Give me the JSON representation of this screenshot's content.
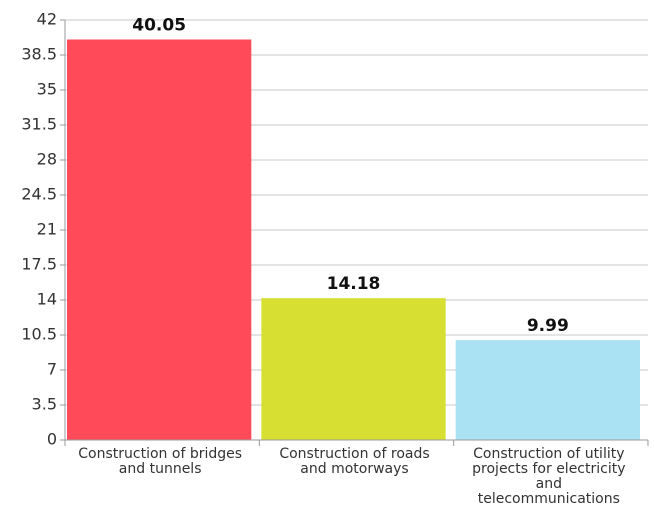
{
  "chart_data": {
    "type": "bar",
    "categories": [
      "Construction of bridges and tunnels",
      "Construction of roads and motorways",
      "Construction of utility projects for electricity and telecommunications"
    ],
    "values": [
      40.05,
      14.18,
      9.99
    ],
    "colors": [
      "#ff4b59",
      "#d6df32",
      "#aae1f3"
    ],
    "ylim": [
      0,
      42
    ],
    "yticks": [
      0,
      3.5,
      7,
      10.5,
      14,
      17.5,
      21,
      24.5,
      28,
      31.5,
      35,
      38.5,
      42
    ],
    "grid": true
  }
}
